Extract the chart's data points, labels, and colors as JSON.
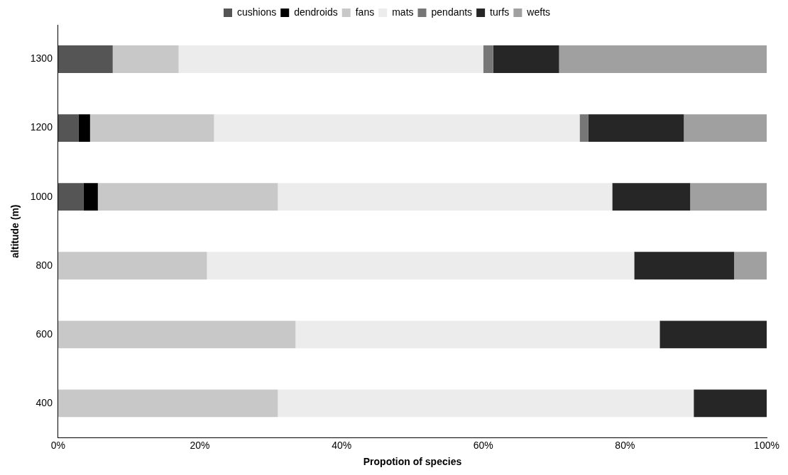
{
  "chart_data": {
    "type": "bar",
    "orientation": "horizontal",
    "stacked": true,
    "xlabel": "Propotion of species",
    "ylabel": "altitude (m)",
    "categories": [
      "1300",
      "1200",
      "1000",
      "800",
      "600",
      "400"
    ],
    "series": [
      {
        "name": "cushions",
        "color": "#555555",
        "values": [
          7.7,
          2.9,
          3.6,
          0,
          0,
          0
        ]
      },
      {
        "name": "dendroids",
        "color": "#000000",
        "values": [
          0,
          1.6,
          2.0,
          0,
          0,
          0
        ]
      },
      {
        "name": "fans",
        "color": "#c8c8c8",
        "values": [
          9.3,
          17.5,
          25.4,
          21.0,
          33.5,
          31.0
        ]
      },
      {
        "name": "mats",
        "color": "#ececec",
        "values": [
          43.0,
          51.6,
          47.2,
          60.3,
          51.4,
          58.7
        ]
      },
      {
        "name": "pendants",
        "color": "#777777",
        "values": [
          1.4,
          1.2,
          0,
          0,
          0,
          0
        ]
      },
      {
        "name": "turfs",
        "color": "#262626",
        "values": [
          9.3,
          13.5,
          11.0,
          14.1,
          15.1,
          10.3
        ]
      },
      {
        "name": "wefts",
        "color": "#a0a0a0",
        "values": [
          29.3,
          11.7,
          10.8,
          4.6,
          0,
          0
        ]
      }
    ],
    "xlim": [
      0,
      100
    ],
    "xticks": [
      {
        "value": 0,
        "label": "0%"
      },
      {
        "value": 20,
        "label": "20%"
      },
      {
        "value": 40,
        "label": "40%"
      },
      {
        "value": 60,
        "label": "60%"
      },
      {
        "value": 80,
        "label": "80%"
      },
      {
        "value": 100,
        "label": "100%"
      }
    ],
    "grid": false,
    "legend": "top"
  }
}
